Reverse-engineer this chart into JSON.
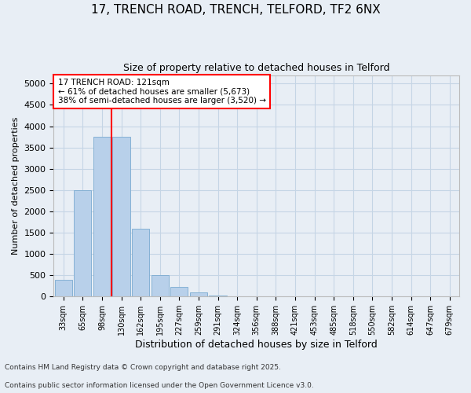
{
  "title1": "17, TRENCH ROAD, TRENCH, TELFORD, TF2 6NX",
  "title2": "Size of property relative to detached houses in Telford",
  "xlabel": "Distribution of detached houses by size in Telford",
  "ylabel": "Number of detached properties",
  "categories": [
    "33sqm",
    "65sqm",
    "98sqm",
    "130sqm",
    "162sqm",
    "195sqm",
    "227sqm",
    "259sqm",
    "291sqm",
    "324sqm",
    "356sqm",
    "388sqm",
    "421sqm",
    "453sqm",
    "485sqm",
    "518sqm",
    "550sqm",
    "582sqm",
    "614sqm",
    "647sqm",
    "679sqm"
  ],
  "values": [
    390,
    2500,
    3750,
    3750,
    1600,
    500,
    220,
    100,
    30,
    5,
    0,
    0,
    0,
    0,
    0,
    0,
    0,
    0,
    0,
    0,
    0
  ],
  "bar_color": "#b8d0ea",
  "bar_edge_color": "#7aaad0",
  "grid_color": "#c5d5e5",
  "bg_color": "#e8eef5",
  "vline_color": "red",
  "vline_pos": 2.5,
  "annotation_text": "17 TRENCH ROAD: 121sqm\n← 61% of detached houses are smaller (5,673)\n38% of semi-detached houses are larger (3,520) →",
  "annotation_box_color": "red",
  "annotation_bg": "white",
  "footnote1": "Contains HM Land Registry data © Crown copyright and database right 2025.",
  "footnote2": "Contains public sector information licensed under the Open Government Licence v3.0.",
  "ylim": [
    0,
    5200
  ],
  "yticks": [
    0,
    500,
    1000,
    1500,
    2000,
    2500,
    3000,
    3500,
    4000,
    4500,
    5000
  ]
}
